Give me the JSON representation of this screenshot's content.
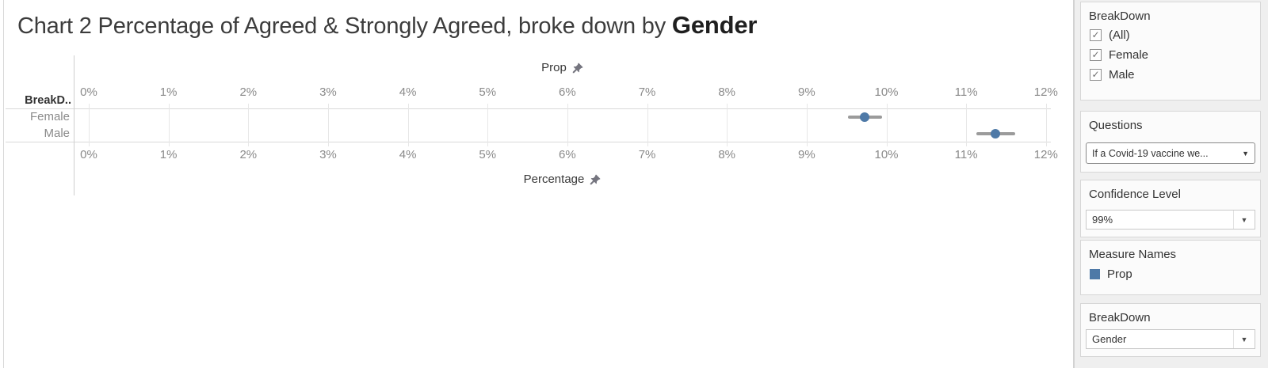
{
  "title": {
    "prefix": "Chart 2 Percentage of Agreed & Strongly Agreed, broke down by ",
    "emphasis": "Gender"
  },
  "chart": {
    "top_axis_title": "Prop",
    "bottom_axis_title": "Percentage",
    "row_header": "BreakD..",
    "rows": [
      "Female",
      "Male"
    ]
  },
  "chart_data": {
    "type": "scatter",
    "title": "Chart 2 Percentage of Agreed & Strongly Agreed, broke down by Gender",
    "categories": [
      "Female",
      "Male"
    ],
    "series": [
      {
        "name": "Prop",
        "values_pct": [
          9.73,
          11.37
        ],
        "ci_low_pct": [
          9.52,
          11.13
        ],
        "ci_high_pct": [
          9.95,
          11.61
        ]
      }
    ],
    "xlabel_top": "Prop",
    "xlabel_bottom": "Percentage",
    "x_ticks_pct": [
      0,
      1,
      2,
      3,
      4,
      5,
      6,
      7,
      8,
      9,
      10,
      11,
      12
    ],
    "x_tick_labels": [
      "0%",
      "1%",
      "2%",
      "3%",
      "4%",
      "5%",
      "6%",
      "7%",
      "8%",
      "9%",
      "10%",
      "11%",
      "12%"
    ],
    "xlim_pct": [
      0,
      12.25
    ],
    "grid": true,
    "legend": [
      "Prop"
    ],
    "legend_position": "right-panel",
    "marker_color": "#4e79a7",
    "whisker_color": "#9b9b9b"
  },
  "panel": {
    "filter_breakdown": {
      "title": "BreakDown",
      "options": [
        {
          "label": "(All)",
          "checked": true
        },
        {
          "label": "Female",
          "checked": true
        },
        {
          "label": "Male",
          "checked": true
        }
      ],
      "check_glyph": "✓"
    },
    "questions": {
      "title": "Questions",
      "value": "If a Covid-19 vaccine we...",
      "arrow_glyph": "▼"
    },
    "confidence": {
      "title": "Confidence Level",
      "value": "99%",
      "arrow_glyph": "▼"
    },
    "measure_names": {
      "title": "Measure Names",
      "legend": [
        {
          "label": "Prop",
          "color": "#4e79a7"
        }
      ]
    },
    "breakdown_param": {
      "title": "BreakDown",
      "value": "Gender",
      "arrow_glyph": "▼"
    }
  }
}
